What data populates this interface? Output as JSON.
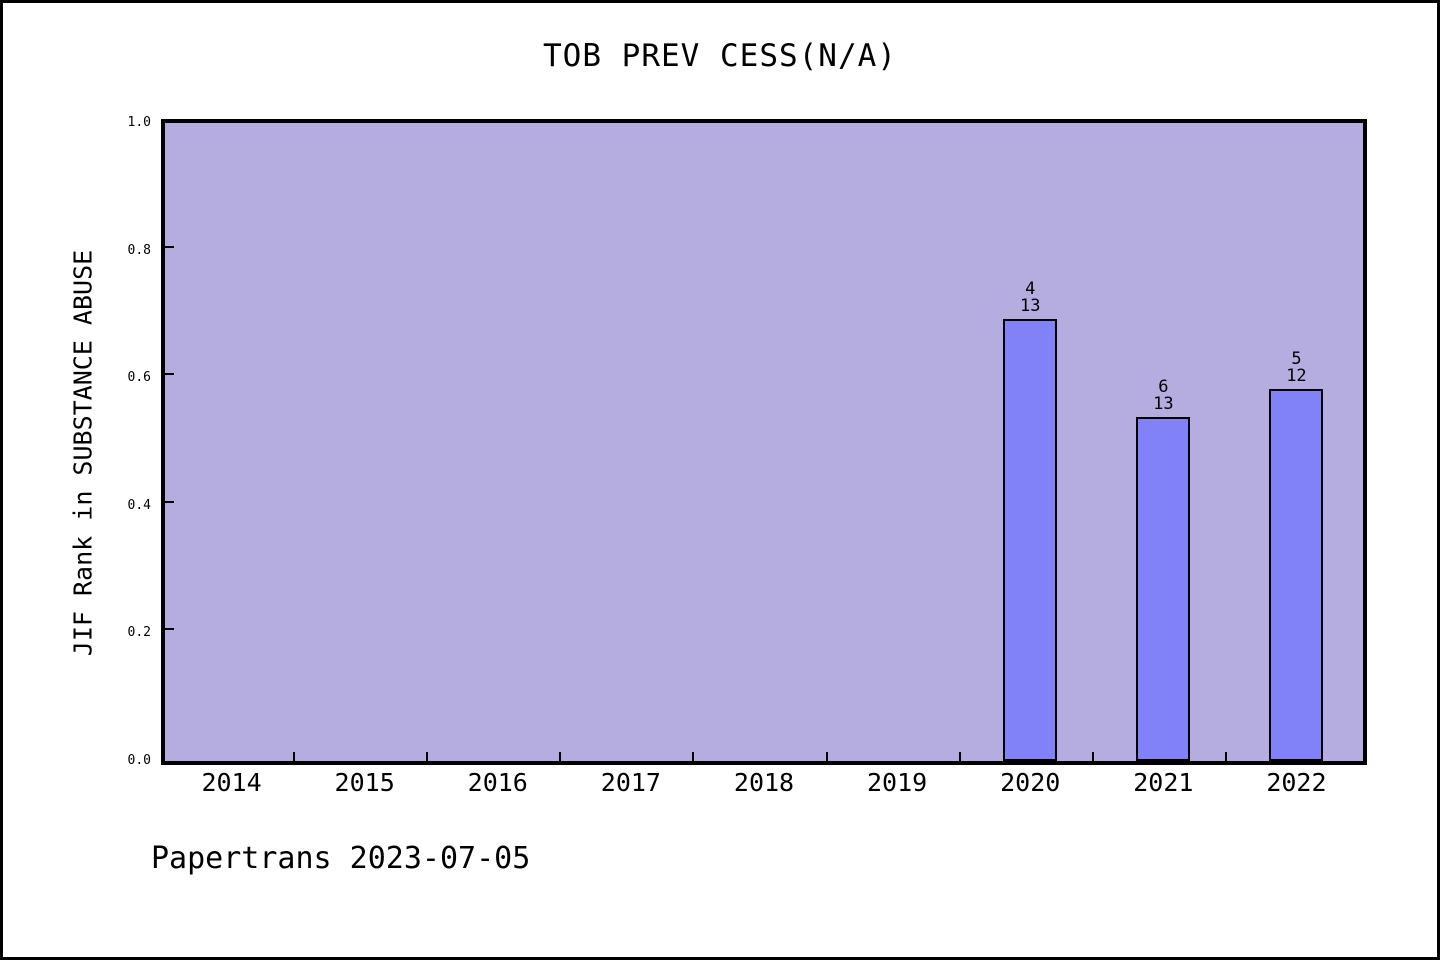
{
  "title": "TOB PREV CESS(N/A)",
  "footer": "Papertrans 2023-07-05",
  "chart_data": {
    "type": "bar",
    "title": "TOB PREV CESS(N/A)",
    "xlabel": "",
    "ylabel": "JIF Rank in SUBSTANCE ABUSE",
    "categories": [
      "2014",
      "2015",
      "2016",
      "2017",
      "2018",
      "2019",
      "2020",
      "2021",
      "2022"
    ],
    "values": [
      null,
      null,
      null,
      null,
      null,
      null,
      0.6923,
      0.5385,
      0.5833
    ],
    "bars": [
      {
        "category": "2020",
        "numerator": "4",
        "denominator": "13",
        "value": 0.6923
      },
      {
        "category": "2021",
        "numerator": "6",
        "denominator": "13",
        "value": 0.5385
      },
      {
        "category": "2022",
        "numerator": "5",
        "denominator": "12",
        "value": 0.5833
      }
    ],
    "ylim": [
      0,
      1
    ],
    "yticks": [
      "0.0",
      "0.2",
      "0.4",
      "0.6",
      "0.8",
      "1.0"
    ],
    "grid": false,
    "legend": false,
    "annotation_style": "rank-over-total stacked above bar",
    "colors": {
      "canvas_background": "#ffffff",
      "canvas_border": "#000000",
      "plot_background": "#b5ade0",
      "bar_fill": "#8181f8",
      "bar_edge": "#000000",
      "text": "#000000"
    }
  }
}
